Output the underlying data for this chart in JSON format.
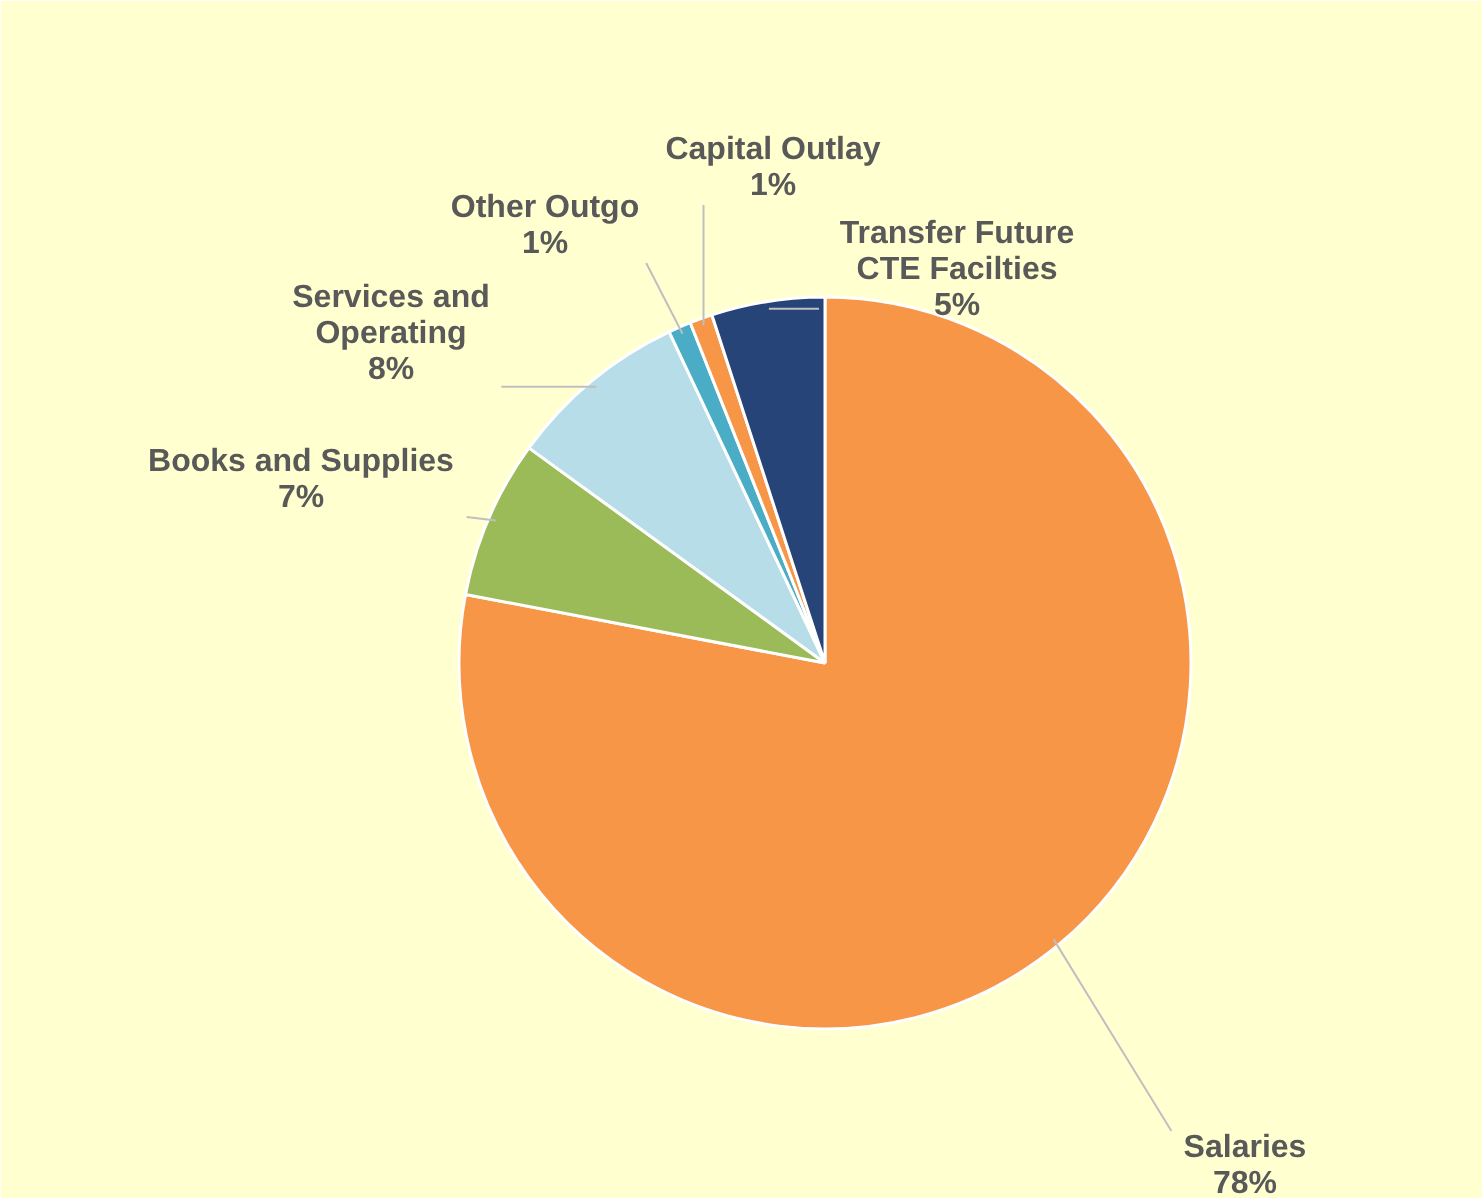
{
  "chart_data": {
    "type": "pie",
    "categories": [
      "Salaries",
      "Books and Supplies",
      "Services and Operating",
      "Other Outgo",
      "Capital Outlay",
      "Transfer Future CTE Facilties"
    ],
    "values": [
      78,
      7,
      8,
      1,
      1,
      5
    ],
    "colors": [
      "#f79646",
      "#9bbb59",
      "#b7dde8",
      "#4bacc6",
      "#f79646",
      "#264478"
    ],
    "value_labels": [
      "78%",
      "7%",
      "8%",
      "1%",
      "1%",
      "5%"
    ]
  }
}
